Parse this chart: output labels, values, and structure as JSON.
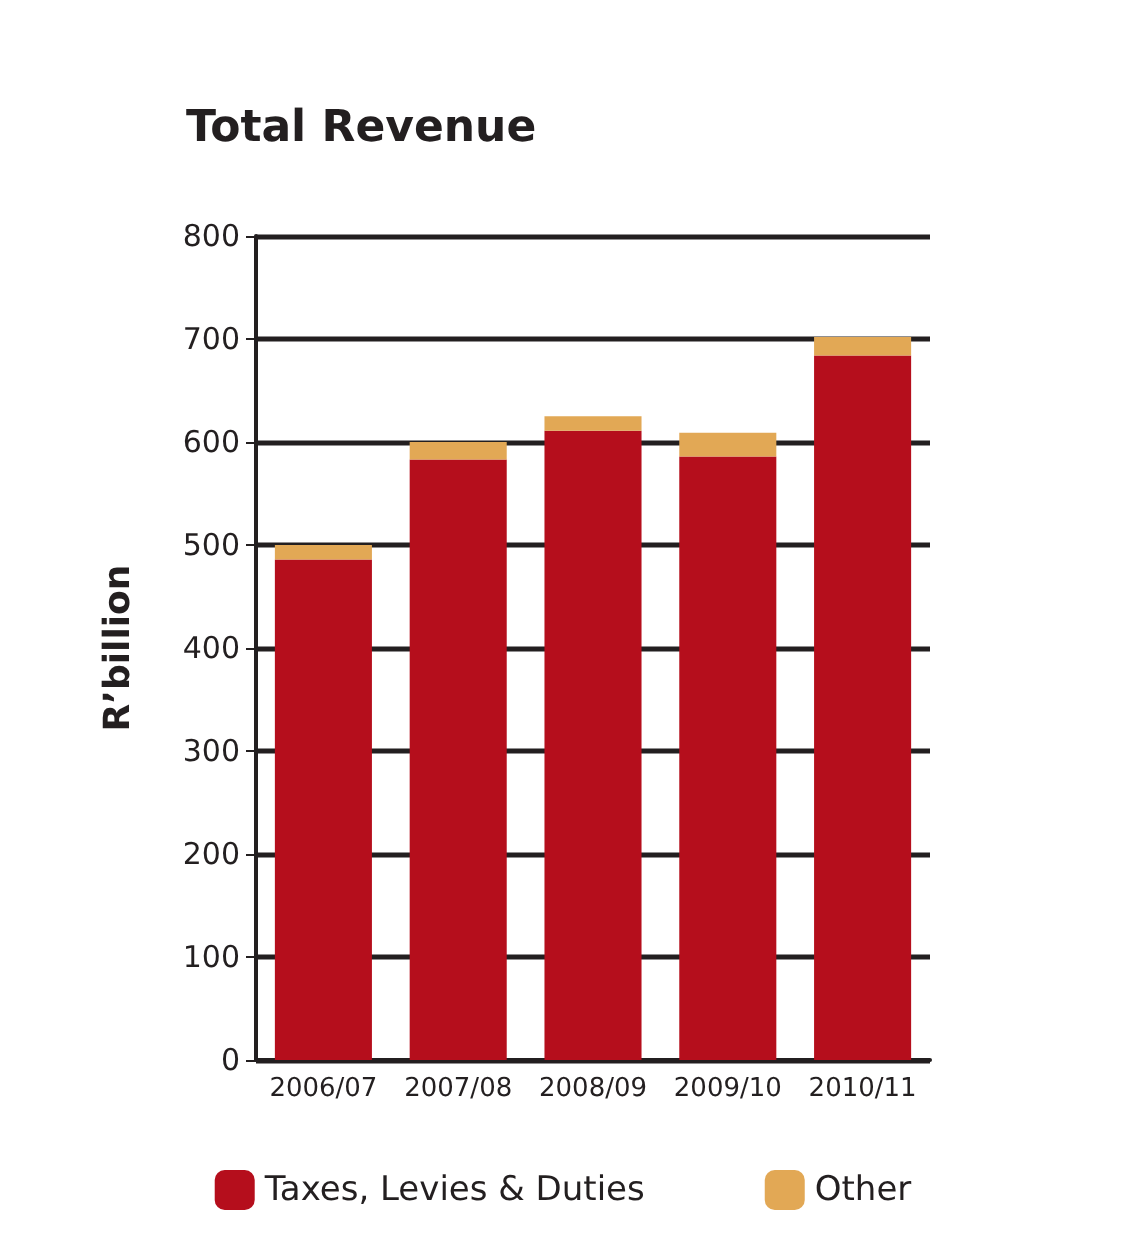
{
  "chart_data": {
    "type": "bar",
    "title": "Total Revenue",
    "ylabel": "R’billion",
    "categories": [
      "2006/07",
      "2007/08",
      "2008/09",
      "2009/10",
      "2010/11"
    ],
    "series": [
      {
        "name": "Taxes, Levies & Duties",
        "color": "#b50e1c",
        "values": [
          486,
          583,
          611,
          586,
          684
        ]
      },
      {
        "name": "Other",
        "color": "#e2a855",
        "values": [
          14,
          17,
          14,
          23,
          18
        ]
      }
    ],
    "stacked": true,
    "ylim": [
      0,
      800
    ],
    "yticks": [
      0,
      100,
      200,
      300,
      400,
      500,
      600,
      700,
      800
    ],
    "grid": "y",
    "legend": "bottom"
  }
}
